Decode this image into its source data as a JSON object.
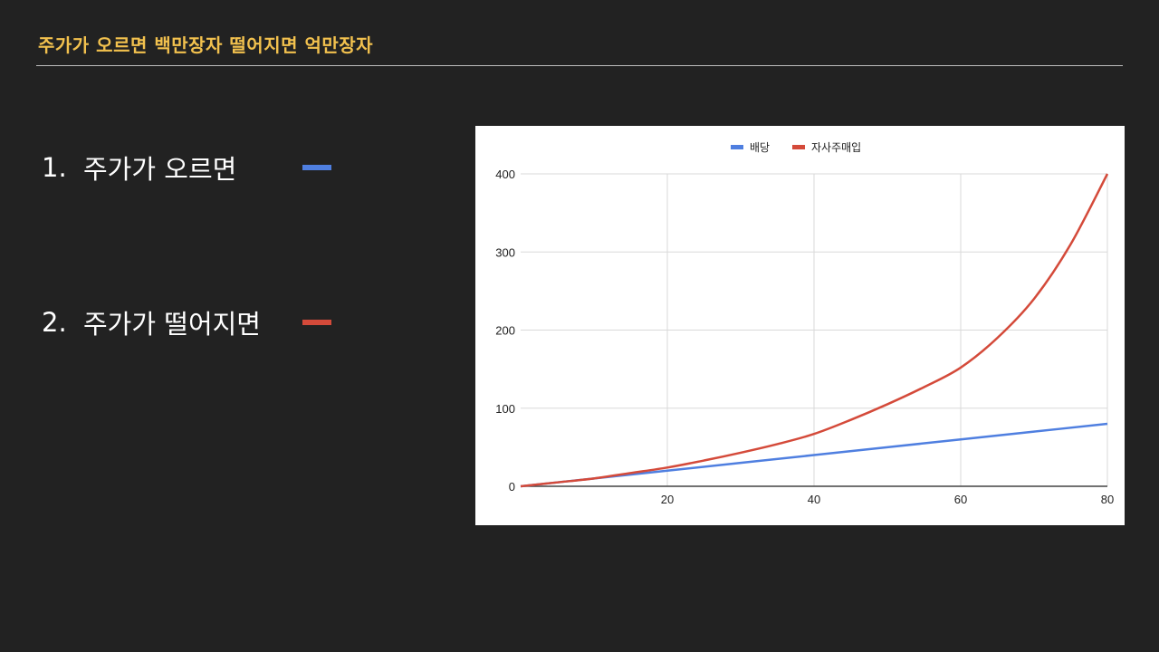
{
  "slide": {
    "title": "주가가 오르면 백만장자 떨어지면 억만장자"
  },
  "points": [
    {
      "number": "1.",
      "text": "주가가 오르면",
      "color": "#4f7fe0"
    },
    {
      "number": "2.",
      "text": "주가가 떨어지면",
      "color": "#d44a3a"
    }
  ],
  "chart_data": {
    "type": "line",
    "x_ticks": [
      20,
      40,
      60,
      80
    ],
    "y_ticks": [
      0,
      100,
      200,
      300,
      400
    ],
    "xlim": [
      0,
      80
    ],
    "ylim": [
      0,
      400
    ],
    "grid": true,
    "legend_position": "top-center",
    "series": [
      {
        "name": "배당",
        "color": "#4f7fe0",
        "x": [
          0,
          10,
          20,
          30,
          40,
          50,
          60,
          70,
          80
        ],
        "y": [
          0,
          10,
          20,
          30,
          40,
          50,
          60,
          70,
          80
        ]
      },
      {
        "name": "자사주매입",
        "color": "#d44a3a",
        "x": [
          0,
          5,
          10,
          15,
          20,
          25,
          30,
          35,
          40,
          45,
          50,
          55,
          60,
          65,
          70,
          75,
          80
        ],
        "y": [
          0,
          5,
          10,
          17,
          24,
          33,
          43,
          54,
          67,
          85,
          105,
          127,
          152,
          190,
          240,
          310,
          400
        ]
      }
    ]
  }
}
